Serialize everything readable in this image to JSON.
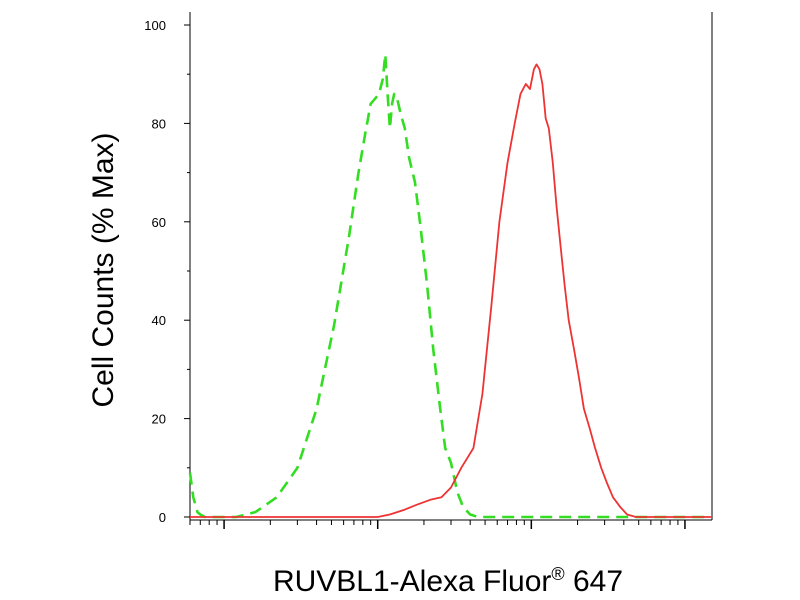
{
  "chart_data": {
    "type": "line",
    "title": "",
    "xlabel": "RUVBL1-Alexa Fluor",
    "xlabel_superscript": "®",
    "xlabel_suffix": " 647",
    "ylabel": "Cell Counts (% Max)",
    "ylim": [
      0,
      100
    ],
    "xscale": "log",
    "xlim": [
      0.6,
      1500
    ],
    "y_ticks": [
      0,
      20,
      40,
      60,
      80,
      100
    ],
    "y_tick_labels": [
      "0",
      "20",
      "40",
      "60",
      "80",
      "100"
    ],
    "grid": false,
    "legend": "none",
    "series": [
      {
        "color": "#33dd22",
        "style": "dashed",
        "x": [
          0.6,
          0.63,
          0.67,
          0.7,
          0.75,
          0.9,
          1.2,
          1.6,
          2.2,
          3,
          4,
          5.2,
          6.5,
          7.5,
          8.3,
          9,
          9.6,
          10.2,
          10.8,
          11.2,
          11.6,
          12.0,
          12.4,
          12.8,
          13.4,
          14.1,
          15.0,
          16.0,
          17.5,
          19.0,
          21.0,
          23.0,
          25.5,
          27.5,
          30,
          33,
          36,
          40,
          45,
          55,
          80,
          150,
          300,
          600,
          1000,
          1500
        ],
        "y": [
          9,
          4,
          1,
          0.5,
          0,
          0,
          0,
          1,
          4,
          10,
          22,
          39,
          57,
          70,
          78,
          84,
          85,
          86,
          89,
          94,
          86,
          79,
          84,
          86,
          85,
          82,
          79,
          73,
          68,
          59,
          47,
          34,
          22,
          14,
          11,
          5,
          2,
          0.5,
          0,
          0,
          0,
          0,
          0,
          0,
          0,
          0
        ]
      },
      {
        "color": "#ee3333",
        "style": "solid",
        "x": [
          0.6,
          2,
          4,
          6,
          8,
          10,
          12,
          15,
          18,
          22,
          26,
          30,
          35,
          42,
          48,
          55,
          62,
          70,
          78,
          85,
          92,
          98,
          104,
          108,
          113,
          118,
          124,
          130,
          138,
          146,
          155,
          165,
          175,
          190,
          205,
          220,
          240,
          260,
          285,
          310,
          340,
          380,
          420,
          480,
          560,
          650,
          800,
          1000,
          1500
        ],
        "y": [
          0,
          0,
          0,
          0,
          0,
          0,
          0.5,
          1.5,
          2.5,
          3.5,
          4,
          6,
          10,
          14,
          25,
          43,
          60,
          72,
          80,
          86,
          88,
          87,
          91,
          92,
          91,
          88,
          81,
          79,
          72,
          63,
          55,
          47,
          40,
          34,
          28,
          22,
          18,
          14,
          10,
          7,
          4,
          2,
          0.5,
          0,
          0,
          0,
          0,
          0,
          0
        ]
      }
    ]
  }
}
